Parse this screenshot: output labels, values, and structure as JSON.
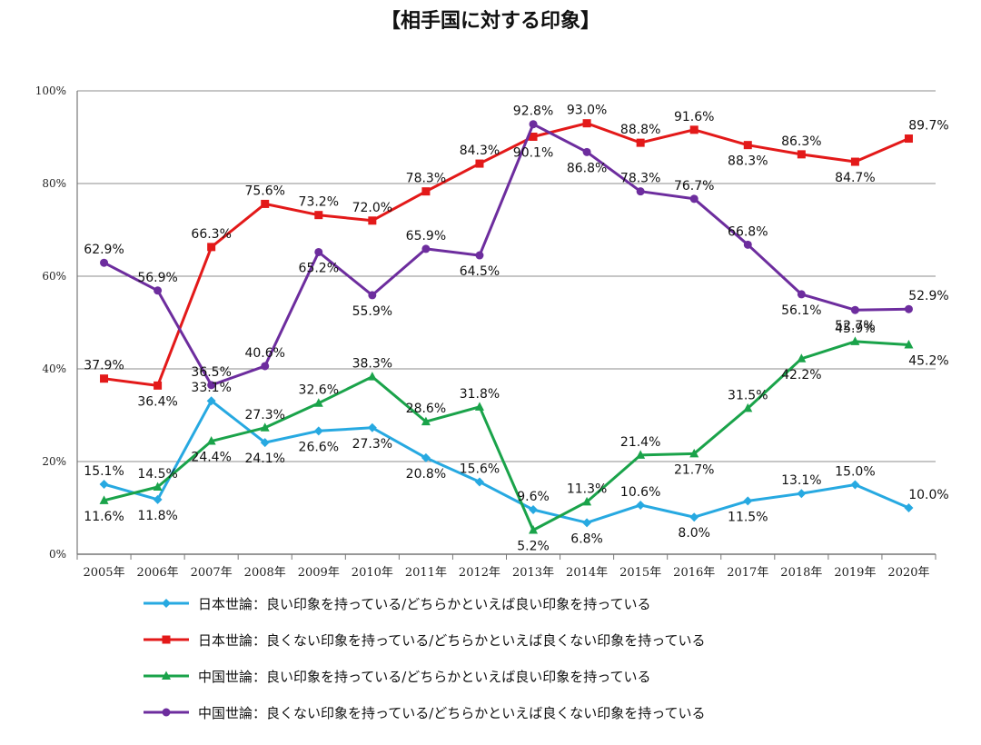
{
  "chart_data": {
    "type": "line",
    "title": "【相手国に対する印象】",
    "xlabel": "",
    "ylabel": "",
    "ylim": [
      0,
      100
    ],
    "yticks": [
      0,
      20,
      40,
      60,
      80,
      100
    ],
    "ytick_labels": [
      "0%",
      "20%",
      "40%",
      "60%",
      "80%",
      "100%"
    ],
    "grid": true,
    "legend_position": "bottom",
    "categories": [
      "2005年",
      "2006年",
      "2007年",
      "2008年",
      "2009年",
      "2010年",
      "2011年",
      "2012年",
      "2013年",
      "2014年",
      "2015年",
      "2016年",
      "2017年",
      "2018年",
      "2019年",
      "2020年"
    ],
    "series": [
      {
        "name": "日本世論：良い印象を持っている/どちらかといえば良い印象を持っている",
        "color": "#27a9e1",
        "marker": "diamond",
        "values": [
          15.1,
          11.8,
          33.1,
          24.1,
          26.6,
          27.3,
          20.8,
          15.6,
          9.6,
          6.8,
          10.6,
          8.0,
          11.5,
          13.1,
          15.0,
          10.0
        ],
        "labels": [
          "15.1%",
          "11.8%",
          "33.1%",
          "24.1%",
          "26.6%",
          "27.3%",
          "20.8%",
          "15.6%",
          "9.6%",
          "6.8%",
          "10.6%",
          "8.0%",
          "11.5%",
          "13.1%",
          "15.0%",
          "10.0%"
        ]
      },
      {
        "name": "日本世論：良くない印象を持っている/どちらかといえば良くない印象を持っている",
        "color": "#e31919",
        "marker": "square",
        "values": [
          37.9,
          36.4,
          66.3,
          75.6,
          73.2,
          72.0,
          78.3,
          84.3,
          90.1,
          93.0,
          88.8,
          91.6,
          88.3,
          86.3,
          84.7,
          89.7
        ],
        "labels": [
          "37.9%",
          "36.4%",
          "66.3%",
          "75.6%",
          "73.2%",
          "72.0%",
          "78.3%",
          "84.3%",
          "90.1%",
          "93.0%",
          "88.8%",
          "91.6%",
          "88.3%",
          "86.3%",
          "84.7%",
          "89.7%"
        ]
      },
      {
        "name": "中国世論：良い印象を持っている/どちらかといえば良い印象を持っている",
        "color": "#1aa34a",
        "marker": "triangle",
        "values": [
          11.6,
          14.5,
          24.4,
          27.3,
          32.6,
          38.3,
          28.6,
          31.8,
          5.2,
          11.3,
          21.4,
          21.7,
          31.5,
          42.2,
          45.9,
          45.2
        ],
        "labels": [
          "11.6%",
          "14.5%",
          "24.4%",
          "27.3%",
          "32.6%",
          "38.3%",
          "28.6%",
          "31.8%",
          "5.2%",
          "11.3%",
          "21.4%",
          "21.7%",
          "31.5%",
          "42.2%",
          "45.9%",
          "45.2%"
        ]
      },
      {
        "name": "中国世論：良くない印象を持っている/どちらかといえば良くない印象を持っている",
        "color": "#6d2d9e",
        "marker": "circle",
        "values": [
          62.9,
          56.9,
          36.5,
          40.6,
          65.2,
          55.9,
          65.9,
          64.5,
          92.8,
          86.8,
          78.3,
          76.7,
          66.8,
          56.1,
          52.7,
          52.9
        ],
        "labels": [
          "62.9%",
          "56.9%",
          "36.5%",
          "40.6%",
          "65.2%",
          "55.9%",
          "65.9%",
          "64.5%",
          "92.8%",
          "86.8%",
          "78.3%",
          "76.7%",
          "66.8%",
          "56.1%",
          "52.7%",
          "52.9%"
        ]
      }
    ]
  }
}
